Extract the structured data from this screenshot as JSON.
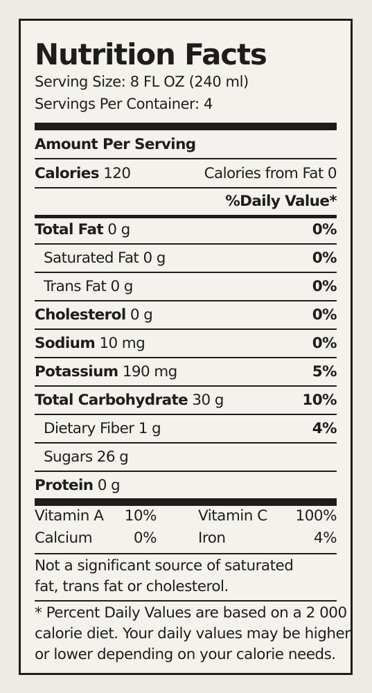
{
  "label": {
    "title": "Nutrition Facts",
    "serving_size": "Serving Size: 8 FL OZ (240 ml)",
    "servings_per_container": "Servings Per Container: 4",
    "amount_per_serving": "Amount Per Serving",
    "calories_label": "Calories",
    "calories_value": "120",
    "calories_from_fat": "Calories from Fat 0",
    "daily_value_header": "%Daily Value*"
  },
  "nutrients": [
    {
      "name": "Total Fat",
      "amount": "0 g",
      "dv": "0%"
    },
    {
      "name": "Saturated Fat",
      "amount": "0 g",
      "dv": "0%"
    },
    {
      "name": "Trans Fat",
      "amount": "0 g",
      "dv": "0%"
    },
    {
      "name": "Cholesterol",
      "amount": "0 g",
      "dv": "0%"
    },
    {
      "name": "Sodium",
      "amount": "10 mg",
      "dv": "0%"
    },
    {
      "name": "Potassium",
      "amount": "190 mg",
      "dv": "5%"
    },
    {
      "name": "Total Carbohydrate",
      "amount": "30 g",
      "dv": "10%"
    },
    {
      "name": "Dietary Fiber",
      "amount": "1 g",
      "dv": "4%"
    },
    {
      "name": "Sugars",
      "amount": "26 g",
      "dv": ""
    },
    {
      "name": "Protein",
      "amount": "0 g",
      "dv": ""
    }
  ],
  "vitamins": [
    {
      "name": "Vitamin A",
      "dv": "10%"
    },
    {
      "name": "Vitamin C",
      "dv": "100%"
    },
    {
      "name": "Calcium",
      "dv": "0%"
    },
    {
      "name": "Iron",
      "dv": "4%"
    }
  ],
  "notes": {
    "significance_line1": "Not a significant source of saturated",
    "significance_line2": "fat, trans fat or cholesterol.",
    "footnote_line1": "* Percent Daily Values are based on a 2 000",
    "footnote_line2": "calorie diet. Your daily values may be higher",
    "footnote_line3": "or lower depending on your calorie needs."
  },
  "colors": {
    "ink": "#1e1d1b",
    "panel": "#f3f2ec",
    "background": "#ecebe4"
  }
}
